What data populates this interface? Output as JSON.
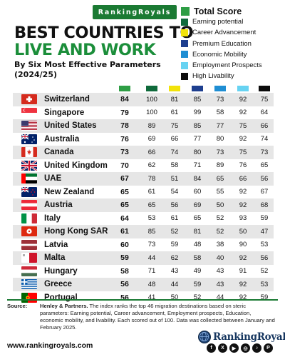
{
  "brand": {
    "badge": "RankingRoyals",
    "footer_name": "RankingRoyals",
    "url": "www.rankingroyals.com"
  },
  "title": {
    "line1": "BEST COUNTRIES TO",
    "line2": "LIVE AND WORK"
  },
  "subtitle": "By Six Most Effective Parameters (2024/25)",
  "legend": [
    {
      "label": "Total Score",
      "color": "#2e9e45"
    },
    {
      "label": "Earning potential",
      "color": "#0f6a3b"
    },
    {
      "label": "Career Advancement",
      "color": "#f2e30a"
    },
    {
      "label": "Premium Education",
      "color": "#1e3f8f"
    },
    {
      "label": "Economic Mobility",
      "color": "#1f8ed3"
    },
    {
      "label": "Employment Prospects",
      "color": "#67d3f2"
    },
    {
      "label": "High Livability",
      "color": "#0b0b0b"
    }
  ],
  "chart_data": {
    "type": "table",
    "columns": [
      "Total Score",
      "Earning potential",
      "Career Advancement",
      "Premium Education",
      "Economic Mobility",
      "Employment Prospects",
      "High Livability"
    ],
    "rows": [
      {
        "country": "Switzerland",
        "flag": "switzerland-flag",
        "values": [
          84,
          100,
          81,
          85,
          73,
          92,
          75
        ]
      },
      {
        "country": "Singapore",
        "flag": "singapore-flag",
        "values": [
          79,
          100,
          61,
          99,
          58,
          92,
          64
        ]
      },
      {
        "country": "United States",
        "flag": "usa-flag",
        "values": [
          78,
          89,
          75,
          85,
          77,
          75,
          66
        ]
      },
      {
        "country": "Australia",
        "flag": "australia-flag",
        "values": [
          76,
          69,
          66,
          77,
          80,
          92,
          74
        ]
      },
      {
        "country": "Canada",
        "flag": "canada-flag",
        "values": [
          73,
          66,
          74,
          80,
          73,
          75,
          73
        ]
      },
      {
        "country": "United Kingdom",
        "flag": "uk-flag",
        "values": [
          70,
          62,
          58,
          71,
          89,
          76,
          65
        ]
      },
      {
        "country": "UAE",
        "flag": "uae-flag",
        "values": [
          67,
          78,
          51,
          84,
          65,
          66,
          56
        ]
      },
      {
        "country": "New Zealand",
        "flag": "new-zealand-flag",
        "values": [
          65,
          61,
          54,
          60,
          55,
          92,
          67
        ]
      },
      {
        "country": "Austria",
        "flag": "austria-flag",
        "values": [
          65,
          65,
          56,
          69,
          50,
          92,
          68
        ]
      },
      {
        "country": "Italy",
        "flag": "italy-flag",
        "values": [
          64,
          53,
          61,
          65,
          52,
          93,
          59
        ]
      },
      {
        "country": "Hong Kong SAR",
        "flag": "hong-kong-flag",
        "values": [
          61,
          85,
          52,
          81,
          52,
          50,
          47
        ]
      },
      {
        "country": "Latvia",
        "flag": "latvia-flag",
        "values": [
          60,
          73,
          59,
          48,
          38,
          90,
          53
        ]
      },
      {
        "country": "Malta",
        "flag": "malta-flag",
        "values": [
          59,
          44,
          62,
          58,
          40,
          92,
          56
        ]
      },
      {
        "country": "Hungary",
        "flag": "hungary-flag",
        "values": [
          58,
          71,
          43,
          49,
          43,
          91,
          52
        ]
      },
      {
        "country": "Greece",
        "flag": "greece-flag",
        "values": [
          56,
          48,
          44,
          59,
          43,
          92,
          53
        ]
      },
      {
        "country": "Portugal",
        "flag": "portugal-flag",
        "values": [
          56,
          41,
          50,
          52,
          44,
          92,
          59
        ]
      }
    ]
  },
  "source": {
    "label": "Source:",
    "author": "Henley & Partners.",
    "text": "The index ranks the top 46 migration destinations based on steric parameters: Earning potential, Career advancement, Employment prospects, Education, economic mobility, and livability. Each scored out of 100. Data was collected between January and February 2025."
  },
  "socials": [
    {
      "icon": "facebook-icon",
      "glyph": "f"
    },
    {
      "icon": "x-icon",
      "glyph": "X"
    },
    {
      "icon": "youtube-icon",
      "glyph": "▶"
    },
    {
      "icon": "instagram-icon",
      "glyph": "◎"
    },
    {
      "icon": "tiktok-icon",
      "glyph": "♪"
    },
    {
      "icon": "pinterest-icon",
      "glyph": "P"
    }
  ]
}
